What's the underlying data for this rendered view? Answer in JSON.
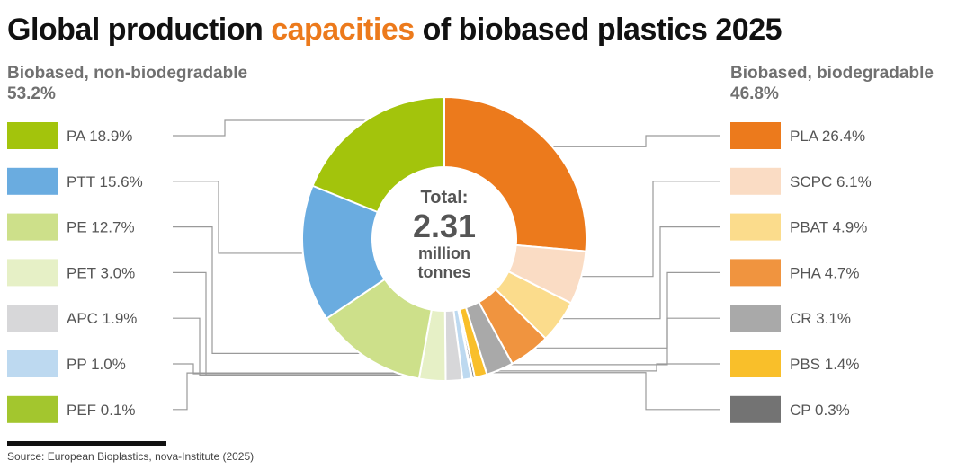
{
  "title": {
    "before": "Global production ",
    "highlight": "capacities",
    "after": " of biobased plastics 2025"
  },
  "left_group": {
    "label": "Biobased, non-biodegradable",
    "share": "53.2%"
  },
  "right_group": {
    "label": "Biobased, biodegradable",
    "share": "46.8%"
  },
  "total": {
    "label": "Total:",
    "value": "2.31",
    "unit_line1": "million",
    "unit_line2": "tonnes"
  },
  "source": "Source: European Bioplastics, nova-Institute (2025)",
  "colors": {
    "title_accent": "#ec7a1c",
    "leader_lines": "#9a9a9a"
  },
  "chart_data": {
    "type": "pie",
    "variant": "donut",
    "total_value": 2.31,
    "total_unit": "million tonnes",
    "slices": [
      {
        "label": "PLA",
        "value": 26.4,
        "display": "PLA 26.4%",
        "color": "#ec7a1c",
        "group": "biodegradable"
      },
      {
        "label": "SCPC",
        "value": 6.1,
        "display": "SCPC 6.1%",
        "color": "#fadcc4",
        "group": "biodegradable"
      },
      {
        "label": "PBAT",
        "value": 4.9,
        "display": "PBAT 4.9%",
        "color": "#fbdc8c",
        "group": "biodegradable"
      },
      {
        "label": "PHA",
        "value": 4.7,
        "display": "PHA 4.7%",
        "color": "#f0943f",
        "group": "biodegradable"
      },
      {
        "label": "CR",
        "value": 3.1,
        "display": "CR 3.1%",
        "color": "#a9a9a9",
        "group": "biodegradable"
      },
      {
        "label": "PBS",
        "value": 1.4,
        "display": "PBS 1.4%",
        "color": "#f9bf2a",
        "group": "biodegradable"
      },
      {
        "label": "CP",
        "value": 0.3,
        "display": "CP 0.3%",
        "color": "#737373",
        "group": "biodegradable"
      },
      {
        "label": "PEF",
        "value": 0.1,
        "display": "PEF 0.1%",
        "color": "#a3c62e",
        "group": "non-biodegradable"
      },
      {
        "label": "PP",
        "value": 1.0,
        "display": "PP 1.0%",
        "color": "#bdd9f0",
        "group": "non-biodegradable"
      },
      {
        "label": "APC",
        "value": 1.9,
        "display": "APC 1.9%",
        "color": "#d7d7d9",
        "group": "non-biodegradable"
      },
      {
        "label": "PET",
        "value": 3.0,
        "display": "PET 3.0%",
        "color": "#e6f0c6",
        "group": "non-biodegradable"
      },
      {
        "label": "PE",
        "value": 12.7,
        "display": "PE 12.7%",
        "color": "#cde08a",
        "group": "non-biodegradable"
      },
      {
        "label": "PTT",
        "value": 15.6,
        "display": "PTT 15.6%",
        "color": "#6aace0",
        "group": "non-biodegradable"
      },
      {
        "label": "PA",
        "value": 18.9,
        "display": "PA 18.9%",
        "color": "#a3c40c",
        "group": "non-biodegradable"
      }
    ],
    "legend_left_order": [
      "PA",
      "PTT",
      "PE",
      "PET",
      "APC",
      "PP",
      "PEF"
    ],
    "legend_right_order": [
      "PLA",
      "SCPC",
      "PBAT",
      "PHA",
      "CR",
      "PBS",
      "CP"
    ]
  }
}
